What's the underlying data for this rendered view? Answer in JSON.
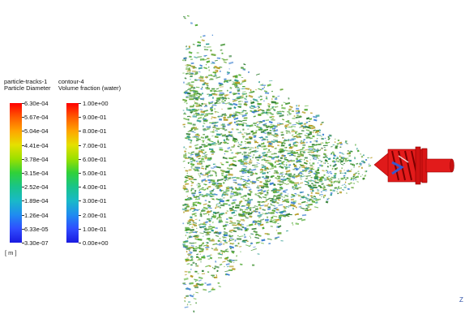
{
  "legend_particles": {
    "title": "particle-tracks-1",
    "subtitle": "Particle Diameter",
    "ticks": [
      "6.30e-04",
      "5.67e-04",
      "5.04e-04",
      "4.41e-04",
      "3.78e-04",
      "3.15e-04",
      "2.52e-04",
      "1.89e-04",
      "1.26e-04",
      "6.33e-05",
      "3.30e-07"
    ],
    "unit": "[ m ]"
  },
  "legend_contour": {
    "title": "contour-4",
    "subtitle": "Volume fraction (water)",
    "ticks": [
      "1.00e+00",
      "9.00e-01",
      "8.00e-01",
      "7.00e-01",
      "6.00e-01",
      "5.00e-01",
      "4.00e-01",
      "3.00e-01",
      "2.00e-01",
      "1.00e-01",
      "0.00e+00"
    ]
  },
  "colormap": [
    "#ff0000",
    "#ff5a00",
    "#ffa500",
    "#e5e000",
    "#9be000",
    "#2fd13a",
    "#19c48a",
    "#19b9c8",
    "#1f8cf0",
    "#2f4dff",
    "#1a1ae0"
  ],
  "corner_label": "Z"
}
